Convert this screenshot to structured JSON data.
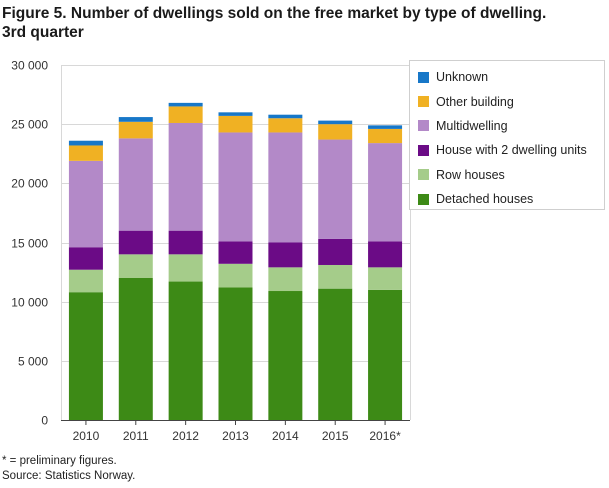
{
  "figure": {
    "title_line1": "Figure 5. Number of dwellings sold on the free market by type of dwelling.",
    "title_line2": "3rd quarter"
  },
  "footnote": {
    "line1": "* = preliminary figures.",
    "line2": "Source: Statistics Norway."
  },
  "chart_data": {
    "type": "bar",
    "stacked": true,
    "categories": [
      "2010",
      "2011",
      "2012",
      "2013",
      "2014",
      "2015",
      "2016*"
    ],
    "ylim": [
      0,
      30000
    ],
    "yticks": [
      0,
      5000,
      10000,
      15000,
      20000,
      25000,
      30000
    ],
    "ytick_labels": [
      "0",
      "5 000",
      "10 000",
      "15 000",
      "20 000",
      "25 000",
      "30 000"
    ],
    "grid": true,
    "legend_position": "right",
    "series": [
      {
        "name": "Detached houses",
        "color": "#3d8a16",
        "values": [
          10800,
          12000,
          11700,
          11200,
          10900,
          11100,
          11000
        ]
      },
      {
        "name": "Row houses",
        "color": "#a5cc8a",
        "values": [
          1900,
          2000,
          2300,
          2000,
          2000,
          2000,
          1900
        ]
      },
      {
        "name": "House with 2 dwelling units",
        "color": "#6b0b86",
        "values": [
          1900,
          2000,
          2000,
          1900,
          2100,
          2200,
          2200
        ]
      },
      {
        "name": "Multidwelling",
        "color": "#b389c8",
        "values": [
          7300,
          7800,
          9100,
          9200,
          9300,
          8400,
          8300
        ]
      },
      {
        "name": "Other building",
        "color": "#f0b123",
        "values": [
          1300,
          1400,
          1400,
          1400,
          1200,
          1300,
          1200
        ]
      },
      {
        "name": "Unknown",
        "color": "#1777c8",
        "values": [
          400,
          400,
          300,
          300,
          300,
          300,
          300
        ]
      }
    ]
  }
}
